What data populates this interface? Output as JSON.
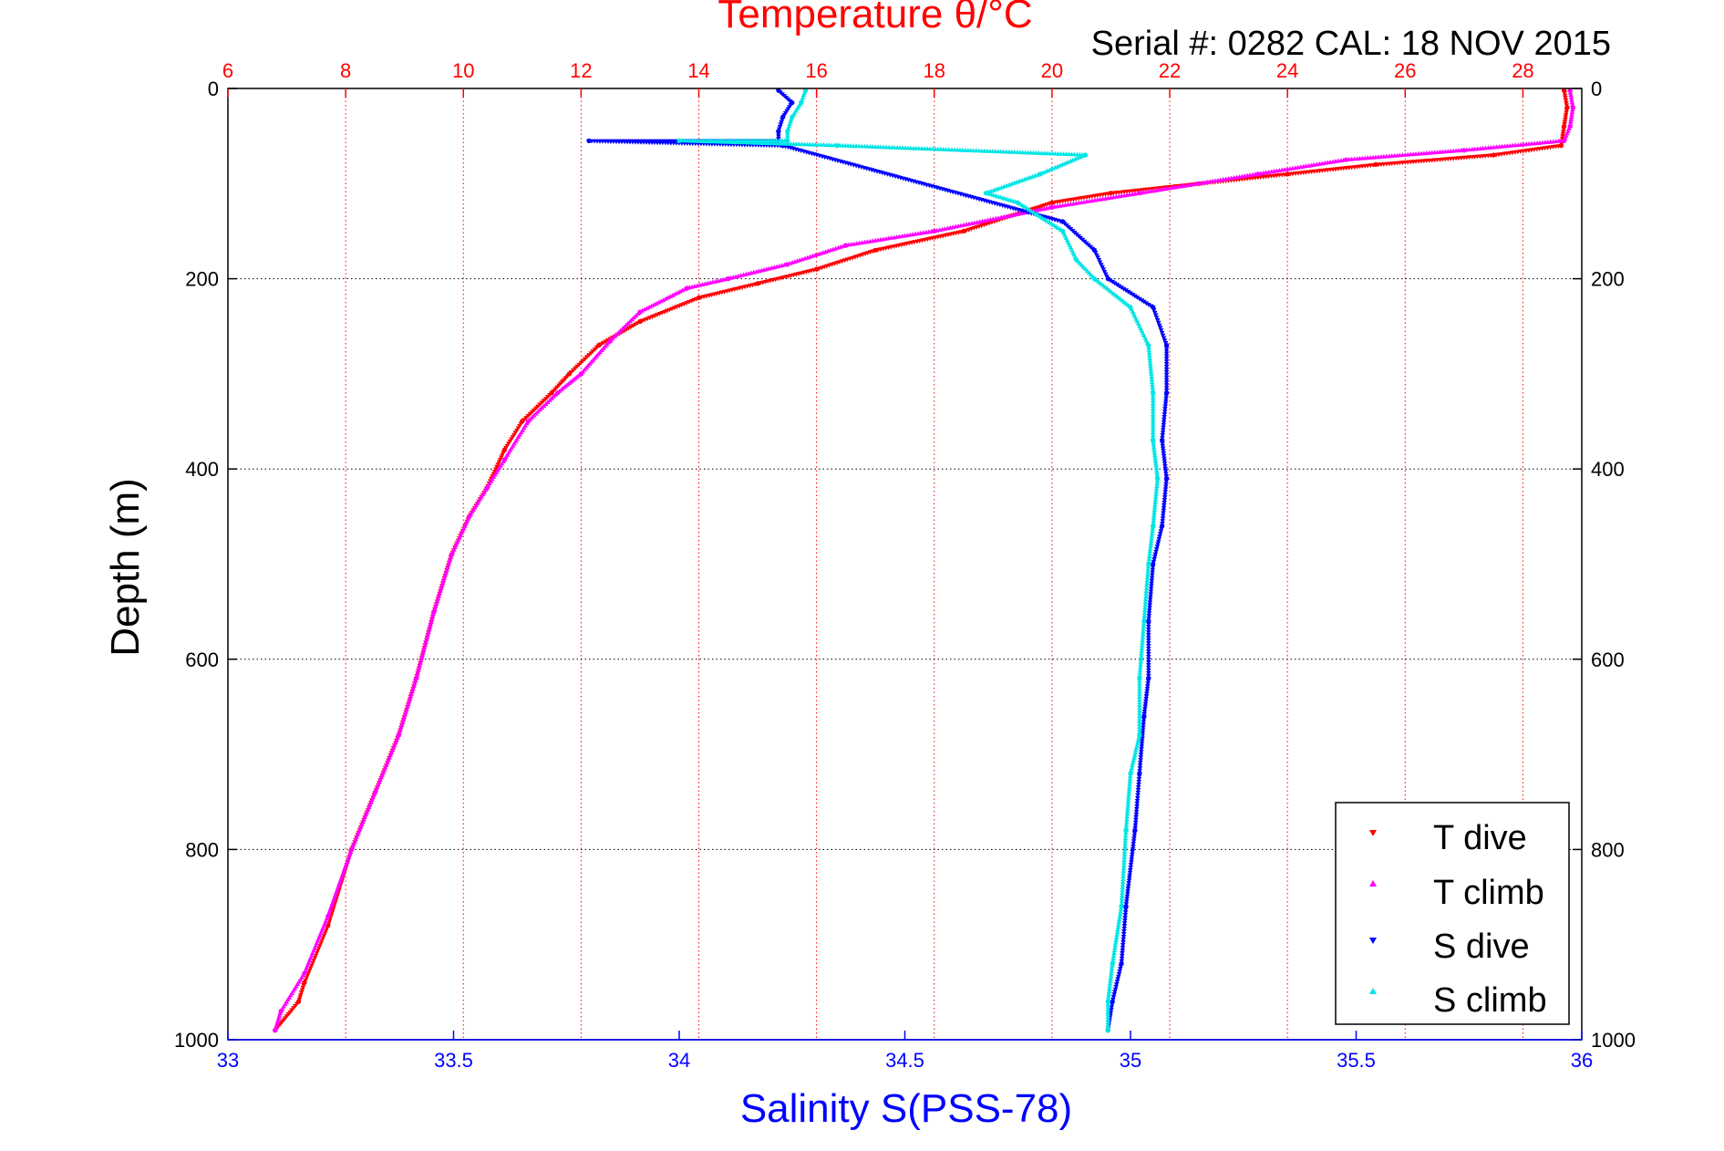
{
  "chart_data": {
    "type": "scatter",
    "top_axis": {
      "label": "Temperature θ/°C",
      "range": [
        6,
        29
      ],
      "ticks": [
        6,
        8,
        10,
        12,
        14,
        16,
        18,
        20,
        22,
        24,
        26,
        28
      ],
      "color": "#ff0000",
      "grid": true
    },
    "bottom_axis": {
      "label": "Salinity S(PSS-78)",
      "range": [
        33,
        36
      ],
      "ticks": [
        33,
        33.5,
        34,
        34.5,
        35,
        35.5,
        36
      ],
      "color": "#0000ff"
    },
    "y_axis": {
      "label": "Depth (m)",
      "range": [
        0,
        1000
      ],
      "reversed": true,
      "ticks": [
        0,
        200,
        400,
        600,
        800,
        1000
      ],
      "grid": true
    },
    "annotation": "Serial #: 0282  CAL: 18 NOV 2015",
    "legend": {
      "position": "bottom-right",
      "entries": [
        {
          "label": "T dive",
          "color": "#ff0000",
          "marker": "triangle-down"
        },
        {
          "label": "T climb",
          "color": "#ff00ff",
          "marker": "triangle-up"
        },
        {
          "label": "S dive",
          "color": "#0000ff",
          "marker": "triangle-down"
        },
        {
          "label": "S climb",
          "color": "#00e5e5",
          "marker": "triangle-up"
        }
      ]
    },
    "series": [
      {
        "name": "T dive",
        "axis": "temperature",
        "color": "#ff0000",
        "points": [
          [
            28.7,
            2
          ],
          [
            28.75,
            20
          ],
          [
            28.7,
            40
          ],
          [
            28.65,
            60
          ],
          [
            27.5,
            70
          ],
          [
            25.5,
            80
          ],
          [
            24,
            90
          ],
          [
            22.5,
            100
          ],
          [
            21,
            110
          ],
          [
            20,
            120
          ],
          [
            19.5,
            130
          ],
          [
            18.5,
            150
          ],
          [
            17,
            170
          ],
          [
            16,
            190
          ],
          [
            15,
            205
          ],
          [
            14,
            220
          ],
          [
            13,
            245
          ],
          [
            12.3,
            270
          ],
          [
            11.8,
            300
          ],
          [
            11.5,
            320
          ],
          [
            11,
            350
          ],
          [
            10.7,
            380
          ],
          [
            10.4,
            420
          ],
          [
            10.1,
            450
          ],
          [
            9.8,
            490
          ],
          [
            9.5,
            550
          ],
          [
            9.2,
            620
          ],
          [
            8.9,
            680
          ],
          [
            8.5,
            740
          ],
          [
            8.1,
            800
          ],
          [
            7.7,
            880
          ],
          [
            7.3,
            940
          ],
          [
            7.2,
            960
          ],
          [
            6.8,
            990
          ]
        ]
      },
      {
        "name": "T climb",
        "axis": "temperature",
        "color": "#ff00ff",
        "points": [
          [
            28.8,
            2
          ],
          [
            28.85,
            20
          ],
          [
            28.8,
            40
          ],
          [
            28.7,
            55
          ],
          [
            27,
            65
          ],
          [
            25,
            75
          ],
          [
            23.5,
            90
          ],
          [
            21.5,
            110
          ],
          [
            20,
            125
          ],
          [
            18,
            150
          ],
          [
            16.5,
            165
          ],
          [
            15.5,
            185
          ],
          [
            14.5,
            200
          ],
          [
            13.8,
            210
          ],
          [
            13,
            235
          ],
          [
            12.5,
            265
          ],
          [
            12,
            300
          ],
          [
            11.6,
            320
          ],
          [
            11.1,
            350
          ],
          [
            10.7,
            390
          ],
          [
            10.4,
            420
          ],
          [
            10.1,
            450
          ],
          [
            9.8,
            490
          ],
          [
            9.5,
            550
          ],
          [
            9.2,
            620
          ],
          [
            8.9,
            680
          ],
          [
            8.5,
            740
          ],
          [
            8.1,
            800
          ],
          [
            7.7,
            870
          ],
          [
            7.3,
            930
          ],
          [
            6.9,
            970
          ],
          [
            6.8,
            990
          ]
        ]
      },
      {
        "name": "S dive",
        "axis": "salinity",
        "color": "#0000ff",
        "points": [
          [
            34.22,
            2
          ],
          [
            34.25,
            15
          ],
          [
            34.23,
            30
          ],
          [
            34.22,
            45
          ],
          [
            34.22,
            55
          ],
          [
            33.8,
            55
          ],
          [
            34.23,
            60
          ],
          [
            34.85,
            140
          ],
          [
            34.92,
            170
          ],
          [
            34.95,
            200
          ],
          [
            35.05,
            230
          ],
          [
            35.08,
            270
          ],
          [
            35.08,
            320
          ],
          [
            35.07,
            370
          ],
          [
            35.08,
            410
          ],
          [
            35.07,
            460
          ],
          [
            35.05,
            500
          ],
          [
            35.04,
            560
          ],
          [
            35.04,
            620
          ],
          [
            35.03,
            660
          ],
          [
            35.02,
            720
          ],
          [
            35.01,
            780
          ],
          [
            34.99,
            860
          ],
          [
            34.98,
            920
          ],
          [
            34.96,
            960
          ],
          [
            34.95,
            990
          ]
        ]
      },
      {
        "name": "S climb",
        "axis": "salinity",
        "color": "#00e5e5",
        "points": [
          [
            34.28,
            2
          ],
          [
            34.27,
            15
          ],
          [
            34.25,
            30
          ],
          [
            34.24,
            45
          ],
          [
            34.24,
            55
          ],
          [
            34.0,
            55
          ],
          [
            34.35,
            60
          ],
          [
            34.9,
            70
          ],
          [
            34.8,
            90
          ],
          [
            34.68,
            110
          ],
          [
            34.75,
            120
          ],
          [
            34.85,
            150
          ],
          [
            34.88,
            180
          ],
          [
            34.92,
            200
          ],
          [
            35.0,
            230
          ],
          [
            35.04,
            270
          ],
          [
            35.05,
            320
          ],
          [
            35.05,
            370
          ],
          [
            35.06,
            410
          ],
          [
            35.05,
            460
          ],
          [
            35.04,
            500
          ],
          [
            35.03,
            560
          ],
          [
            35.02,
            620
          ],
          [
            35.02,
            680
          ],
          [
            35.0,
            720
          ],
          [
            34.99,
            780
          ],
          [
            34.98,
            860
          ],
          [
            34.96,
            920
          ],
          [
            34.95,
            960
          ],
          [
            34.95,
            990
          ]
        ]
      }
    ]
  }
}
